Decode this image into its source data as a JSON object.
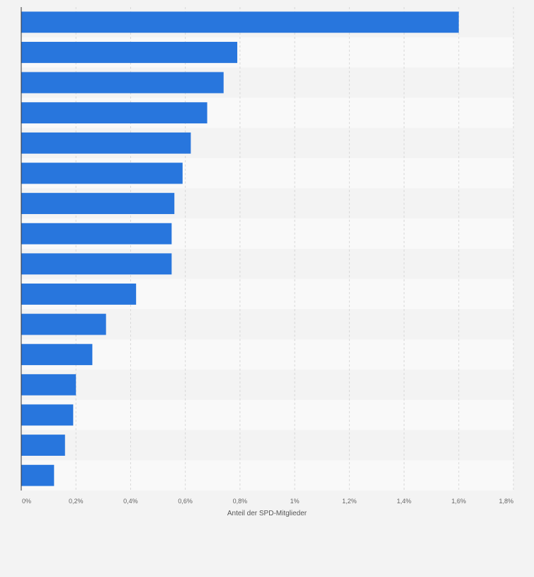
{
  "chart_data": {
    "type": "bar",
    "orientation": "horizontal",
    "categories": [
      "",
      "",
      "",
      "",
      "",
      "",
      "",
      "",
      "",
      "",
      "",
      "",
      "",
      "",
      "",
      ""
    ],
    "values": [
      1.6,
      0.79,
      0.74,
      0.68,
      0.62,
      0.59,
      0.56,
      0.55,
      0.55,
      0.42,
      0.31,
      0.26,
      0.2,
      0.19,
      0.16,
      0.12
    ],
    "xlabel": "Anteil der SPD-Mitglieder",
    "xlim": [
      0,
      1.8
    ],
    "x_ticks": [
      0,
      0.2,
      0.4,
      0.6,
      0.8,
      1.0,
      1.2,
      1.4,
      1.6,
      1.8
    ],
    "x_tick_labels": [
      "0%",
      "0,2%",
      "0,4%",
      "0,6%",
      "0,8%",
      "1%",
      "1,2%",
      "1,4%",
      "1,6%",
      "1,8%"
    ],
    "grid": true,
    "legend": "none",
    "colors": {
      "bar": "#2876dd",
      "background": "#f3f3f3",
      "band_light": "#f9f9f9",
      "band_dark": "#f3f3f3",
      "grid": "#d8d8d8",
      "axis": "#333333",
      "tick_text": "#666666"
    }
  }
}
